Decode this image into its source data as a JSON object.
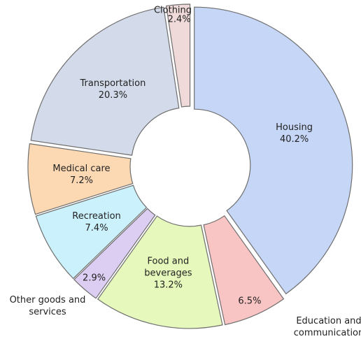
{
  "chart_data": {
    "type": "donut",
    "categories": [
      "Housing",
      "Education and communication",
      "Food and beverages",
      "Other goods and services",
      "Recreation",
      "Medical care",
      "Transportation",
      "Clothing"
    ],
    "values": [
      40.2,
      6.5,
      13.2,
      2.9,
      7.4,
      7.2,
      20.3,
      2.4
    ],
    "value_labels": [
      "40.2%",
      "6.5%",
      "13.2%",
      "2.9%",
      "7.4%",
      "7.2%",
      "20.3%",
      "2.4%"
    ],
    "colors": [
      "#c6d6f7",
      "#f9c4c4",
      "#e6f8bb",
      "#dccdf2",
      "#cbf1fc",
      "#fcd9b3",
      "#d3dae9",
      "#efd9d9"
    ]
  }
}
